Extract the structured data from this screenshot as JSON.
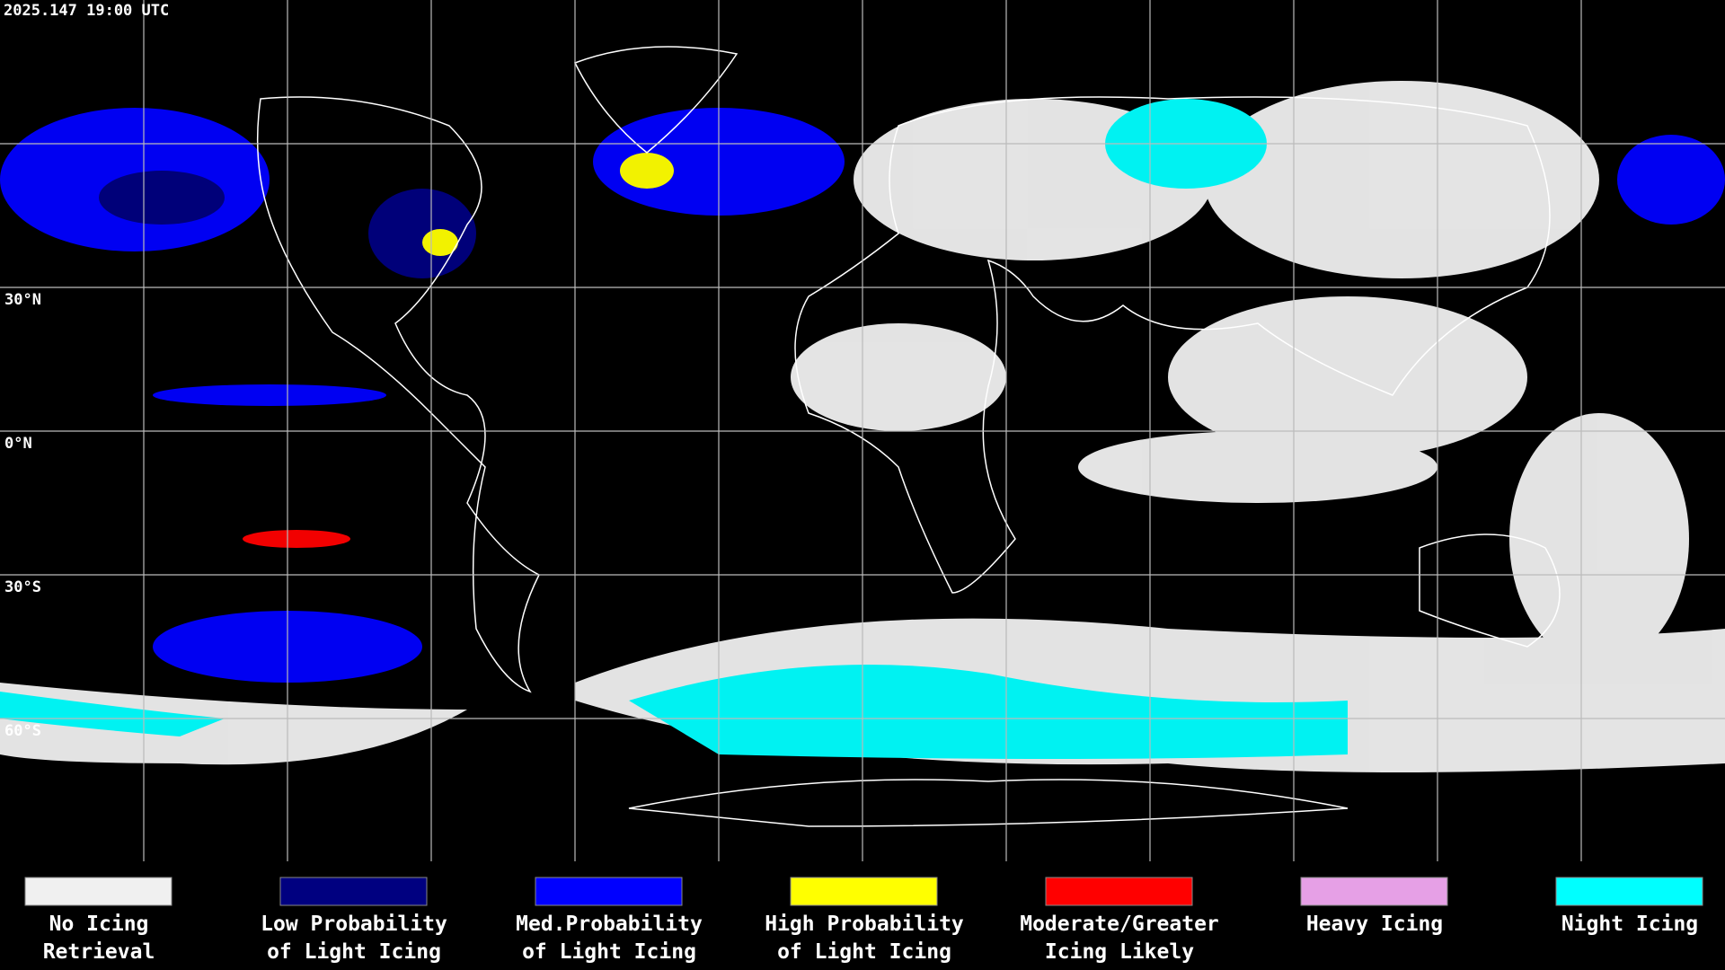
{
  "header": {
    "timestamp": "2025.147 19:00 UTC"
  },
  "latitude_labels": [
    "30°N",
    "0°N",
    "30°S",
    "60°S"
  ],
  "legend": [
    {
      "lines": [
        "No Icing",
        "Retrieval"
      ],
      "color": "#f0f0f0"
    },
    {
      "lines": [
        "Low Probability",
        "of Light Icing"
      ],
      "color": "#000080"
    },
    {
      "lines": [
        "Med.Probability",
        "of Light Icing"
      ],
      "color": "#0000ff"
    },
    {
      "lines": [
        "High Probability",
        "of Light Icing"
      ],
      "color": "#ffff00"
    },
    {
      "lines": [
        "Moderate/Greater",
        "Icing Likely"
      ],
      "color": "#ff0000"
    },
    {
      "lines": [
        "Heavy Icing"
      ],
      "color": "#e6a0e6"
    },
    {
      "lines": [
        "Night Icing"
      ],
      "color": "#00ffff"
    }
  ]
}
